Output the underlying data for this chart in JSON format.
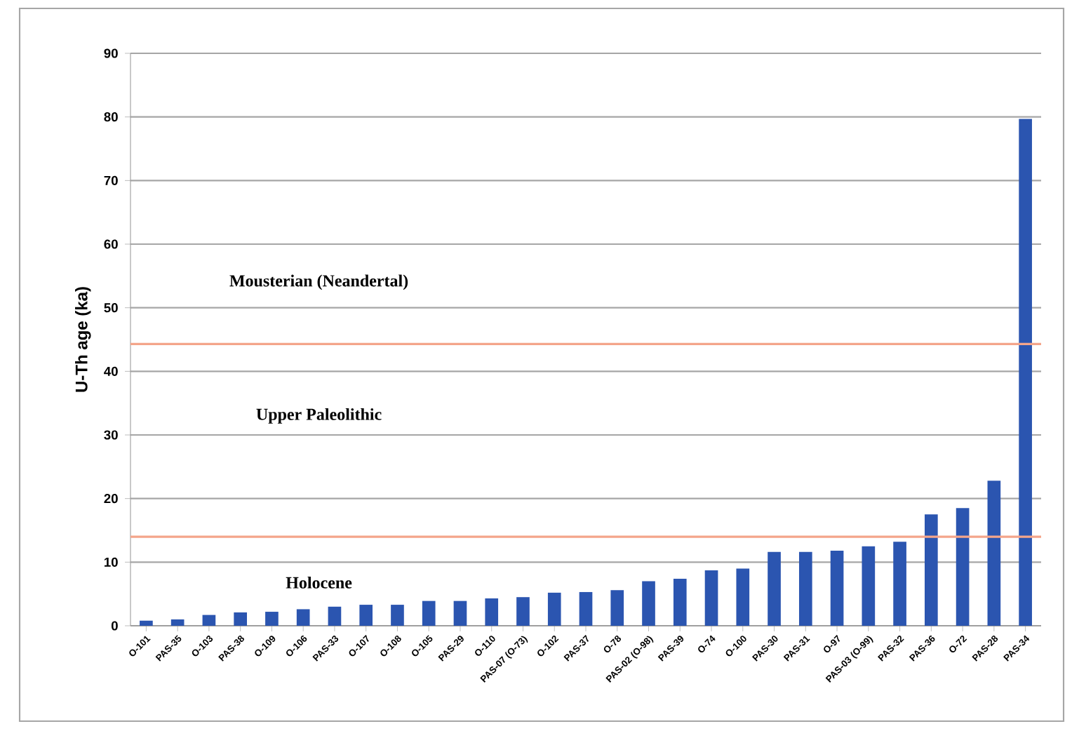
{
  "chart_data": {
    "type": "bar",
    "ylabel": "U-Th age (ka)",
    "categories": [
      "O-101",
      "PAS-35",
      "O-103",
      "PAS-38",
      "O-109",
      "O-106",
      "PAS-33",
      "O-107",
      "O-108",
      "O-105",
      "PAS-29",
      "O-110",
      "PAS-07 (O-73)",
      "O-102",
      "PAS-37",
      "O-78",
      "PAS-02 (O-98)",
      "PAS-39",
      "O-74",
      "O-100",
      "PAS-30",
      "PAS-31",
      "O-97",
      "PAS-03 (O-99)",
      "PAS-32",
      "PAS-36",
      "O-72",
      "PAS-28",
      "PAS-34"
    ],
    "values": [
      0.8,
      1.0,
      1.7,
      2.1,
      2.2,
      2.6,
      3.0,
      3.3,
      3.3,
      3.9,
      3.9,
      4.3,
      4.5,
      5.2,
      5.3,
      5.6,
      7.0,
      7.4,
      8.7,
      9.0,
      11.6,
      11.6,
      11.8,
      12.5,
      13.2,
      17.5,
      18.5,
      22.8,
      79.7
    ],
    "color": "#2b55b0",
    "ylim": [
      0,
      90
    ],
    "yticks": [
      0,
      10,
      20,
      30,
      40,
      50,
      60,
      70,
      80,
      90
    ],
    "grid": "y",
    "ref_lines": [
      {
        "axis": "y",
        "value": 14,
        "color": "#f4a58a"
      },
      {
        "axis": "y",
        "value": 44.3,
        "color": "#f4a58a"
      }
    ],
    "annotations": [
      "Mousterian (Neandertal)",
      "Upper Paleolithic",
      "Holocene"
    ]
  }
}
